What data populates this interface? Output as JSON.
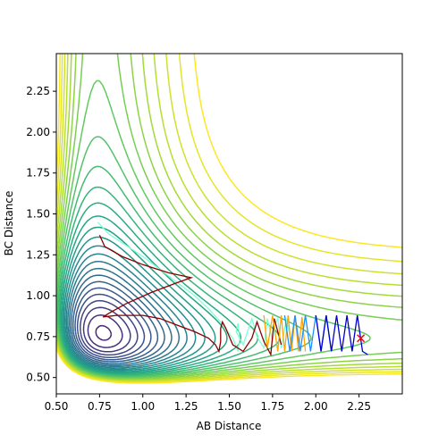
{
  "chart_data": {
    "type": "contour",
    "title": "",
    "xlabel": "AB Distance",
    "ylabel": "BC Distance",
    "xlim": [
      0.5,
      2.5
    ],
    "ylim": [
      0.4,
      2.48
    ],
    "xticks": [
      "0.50",
      "0.75",
      "1.00",
      "1.25",
      "1.50",
      "1.75",
      "2.00",
      "2.25"
    ],
    "yticks": [
      "0.50",
      "0.75",
      "1.00",
      "1.25",
      "1.50",
      "1.75",
      "2.00",
      "2.25"
    ],
    "grid": false,
    "colormap": [
      "#440154",
      "#472c7a",
      "#3b518b",
      "#2c718e",
      "#21908d",
      "#27ad81",
      "#5cc863",
      "#aadc32",
      "#fde725"
    ],
    "contour_levels": 30,
    "trajectories": [
      {
        "color": "#7fffd4",
        "points": [
          [
            0.74,
            1.45
          ],
          [
            0.8,
            1.38
          ],
          [
            0.9,
            1.31
          ],
          [
            1.0,
            1.24
          ],
          [
            1.1,
            1.16
          ],
          [
            1.2,
            1.08
          ],
          [
            1.3,
            1.0
          ],
          [
            1.38,
            0.92
          ],
          [
            1.45,
            0.84
          ],
          [
            1.52,
            0.74
          ],
          [
            1.55,
            0.66
          ],
          [
            1.56,
            0.74
          ],
          [
            1.55,
            0.83
          ],
          [
            1.54,
            0.78
          ],
          [
            1.58,
            0.7
          ],
          [
            1.63,
            0.86
          ],
          [
            1.66,
            0.75
          ],
          [
            1.7,
            0.68
          ],
          [
            1.72,
            0.86
          ],
          [
            1.75,
            0.72
          ],
          [
            1.76,
            0.82
          ],
          [
            1.78,
            0.86
          ],
          [
            1.8,
            0.68
          ],
          [
            1.83,
            0.86
          ],
          [
            1.86,
            0.7
          ]
        ]
      },
      {
        "color": "#8b0000",
        "points": [
          [
            0.75,
            1.37
          ],
          [
            0.78,
            1.3
          ],
          [
            0.88,
            1.24
          ],
          [
            1.0,
            1.19
          ],
          [
            1.15,
            1.14
          ],
          [
            1.28,
            1.11
          ],
          [
            1.2,
            1.08
          ],
          [
            1.05,
            1.02
          ],
          [
            0.9,
            0.95
          ],
          [
            0.8,
            0.89
          ],
          [
            0.77,
            0.87
          ],
          [
            0.85,
            0.88
          ],
          [
            1.0,
            0.88
          ],
          [
            1.1,
            0.86
          ],
          [
            1.2,
            0.82
          ],
          [
            1.3,
            0.78
          ],
          [
            1.38,
            0.74
          ],
          [
            1.42,
            0.7
          ],
          [
            1.44,
            0.66
          ],
          [
            1.45,
            0.72
          ],
          [
            1.45,
            0.8
          ],
          [
            1.46,
            0.84
          ],
          [
            1.48,
            0.8
          ],
          [
            1.52,
            0.7
          ],
          [
            1.58,
            0.66
          ],
          [
            1.63,
            0.74
          ],
          [
            1.66,
            0.84
          ],
          [
            1.7,
            0.72
          ],
          [
            1.74,
            0.64
          ],
          [
            1.76,
            0.86
          ],
          [
            1.8,
            0.7
          ]
        ]
      },
      {
        "color": "#ffa500",
        "points": [
          [
            1.7,
            0.88
          ],
          [
            1.72,
            0.68
          ],
          [
            1.75,
            0.88
          ],
          [
            1.78,
            0.66
          ],
          [
            1.8,
            0.88
          ],
          [
            1.82,
            0.66
          ],
          [
            1.84,
            0.88
          ],
          [
            1.86,
            0.66
          ],
          [
            1.88,
            0.88
          ],
          [
            1.9,
            0.66
          ],
          [
            1.92,
            0.87
          ],
          [
            1.94,
            0.66
          ]
        ]
      },
      {
        "color": "#1e90ff",
        "points": [
          [
            1.82,
            0.88
          ],
          [
            1.85,
            0.66
          ],
          [
            1.88,
            0.88
          ],
          [
            1.91,
            0.66
          ],
          [
            1.94,
            0.88
          ],
          [
            1.97,
            0.66
          ],
          [
            2.0,
            0.88
          ],
          [
            2.03,
            0.66
          ],
          [
            2.06,
            0.88
          ],
          [
            2.09,
            0.66
          ]
        ]
      },
      {
        "color": "#0000cd",
        "points": [
          [
            2.0,
            0.88
          ],
          [
            2.03,
            0.66
          ],
          [
            2.06,
            0.88
          ],
          [
            2.09,
            0.66
          ],
          [
            2.12,
            0.88
          ],
          [
            2.15,
            0.66
          ],
          [
            2.18,
            0.88
          ],
          [
            2.21,
            0.66
          ],
          [
            2.24,
            0.88
          ],
          [
            2.27,
            0.66
          ],
          [
            2.3,
            0.64
          ]
        ]
      }
    ],
    "marker": {
      "symbol": "x",
      "x": 2.26,
      "y": 0.74,
      "color": "#ff0000"
    }
  }
}
